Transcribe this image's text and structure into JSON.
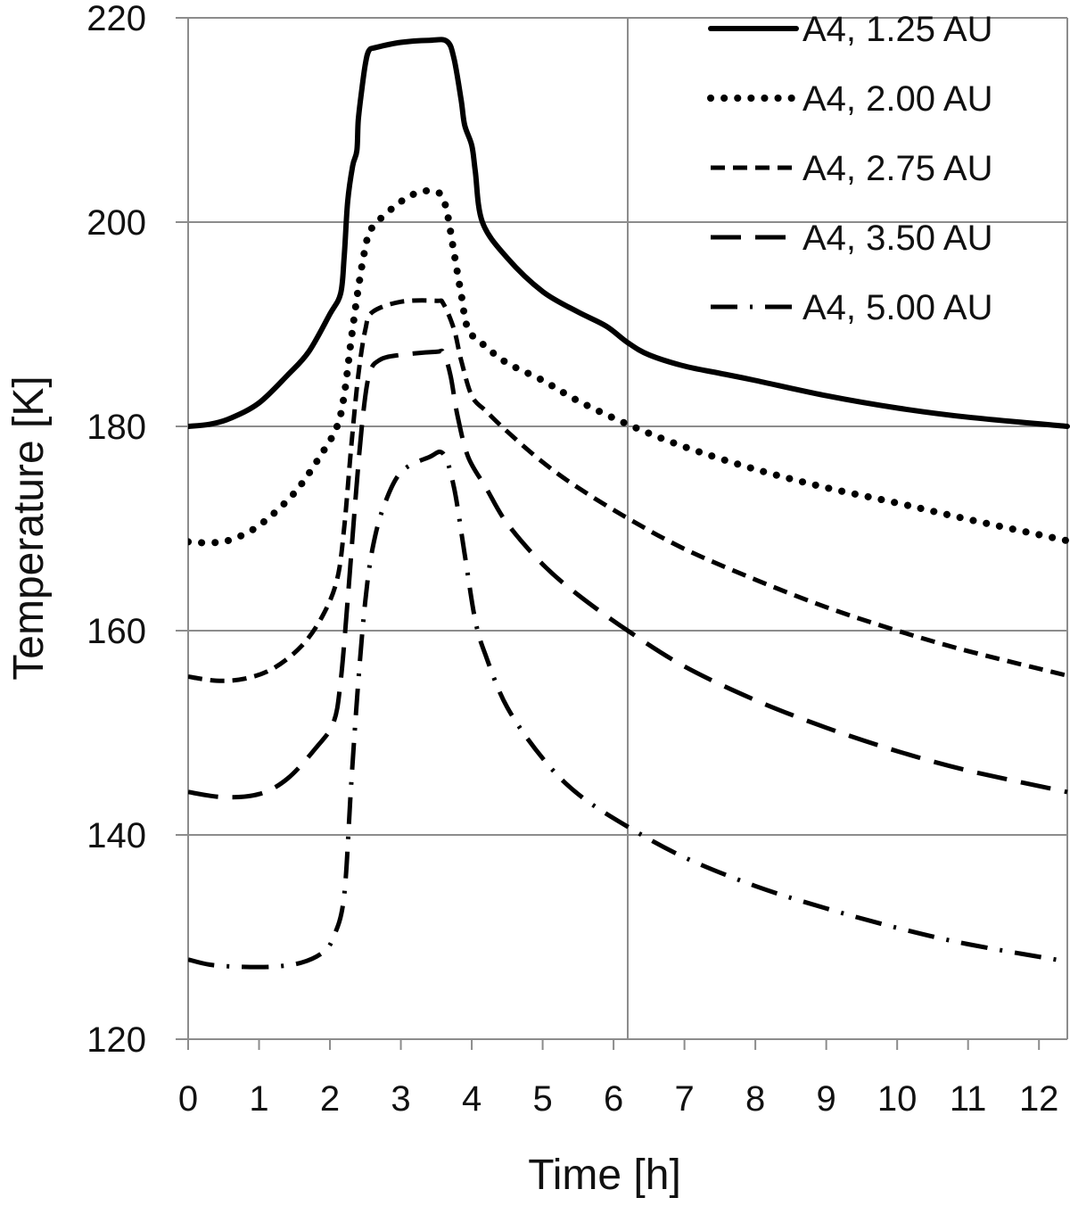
{
  "chart_data": {
    "type": "line",
    "title": "",
    "xlabel": "Time [h]",
    "ylabel": "Temperature [K]",
    "xlim": [
      0,
      12.4
    ],
    "ylim": [
      120,
      220
    ],
    "x_ticks": [
      0,
      1,
      2,
      3,
      4,
      5,
      6,
      7,
      8,
      9,
      10,
      11,
      12
    ],
    "y_ticks": [
      120,
      140,
      160,
      180,
      200,
      220
    ],
    "grid": "major gridlines at y = 140, 160, 180, 200, 220 and x ≈ 6.2",
    "legend_position": "top-right",
    "line_color": "#000000",
    "series": [
      {
        "name": "A4, 1.25 AU",
        "dash": "solid",
        "points": [
          [
            0,
            180
          ],
          [
            0.3,
            180.2
          ],
          [
            0.6,
            180.8
          ],
          [
            1.0,
            182.3
          ],
          [
            1.4,
            185
          ],
          [
            1.7,
            187.3
          ],
          [
            2.0,
            191
          ],
          [
            2.15,
            193
          ],
          [
            2.2,
            196.5
          ],
          [
            2.25,
            202
          ],
          [
            2.32,
            205.5
          ],
          [
            2.38,
            207
          ],
          [
            2.4,
            210
          ],
          [
            2.45,
            213
          ],
          [
            2.5,
            215.5
          ],
          [
            2.55,
            216.8
          ],
          [
            2.65,
            217.1
          ],
          [
            3.0,
            217.6
          ],
          [
            3.4,
            217.8
          ],
          [
            3.65,
            217.7
          ],
          [
            3.75,
            216
          ],
          [
            3.85,
            212
          ],
          [
            3.9,
            209.5
          ],
          [
            4.0,
            207.5
          ],
          [
            4.05,
            205
          ],
          [
            4.15,
            200
          ],
          [
            4.5,
            196.5
          ],
          [
            5.0,
            193.2
          ],
          [
            5.5,
            191.2
          ],
          [
            5.9,
            189.8
          ],
          [
            6.2,
            188.2
          ],
          [
            6.5,
            187
          ],
          [
            7.0,
            185.9
          ],
          [
            7.5,
            185.2
          ],
          [
            8.0,
            184.5
          ],
          [
            9.0,
            183
          ],
          [
            10.0,
            181.8
          ],
          [
            11.0,
            180.9
          ],
          [
            12.4,
            180
          ]
        ]
      },
      {
        "name": "A4, 2.00 AU",
        "dash": "dotted",
        "points": [
          [
            0,
            168.7
          ],
          [
            0.3,
            168.6
          ],
          [
            0.6,
            168.9
          ],
          [
            1.0,
            170.3
          ],
          [
            1.5,
            173.5
          ],
          [
            1.9,
            177.5
          ],
          [
            2.1,
            180
          ],
          [
            2.2,
            183
          ],
          [
            2.3,
            188.5
          ],
          [
            2.4,
            193.5
          ],
          [
            2.5,
            197.5
          ],
          [
            2.6,
            199.5
          ],
          [
            3.0,
            202
          ],
          [
            3.3,
            203
          ],
          [
            3.55,
            202.8
          ],
          [
            3.65,
            201
          ],
          [
            3.75,
            197
          ],
          [
            3.85,
            193
          ],
          [
            3.95,
            189.5
          ],
          [
            4.2,
            187.8
          ],
          [
            4.5,
            186.2
          ],
          [
            5.0,
            184.5
          ],
          [
            5.5,
            182.5
          ],
          [
            6.2,
            180.2
          ],
          [
            7.0,
            178
          ],
          [
            8.0,
            175.8
          ],
          [
            9.0,
            174
          ],
          [
            10.0,
            172.5
          ],
          [
            11.0,
            170.9
          ],
          [
            12.4,
            168.8
          ]
        ]
      },
      {
        "name": "A4, 2.75 AU",
        "dash": "short-dash",
        "points": [
          [
            0,
            155.5
          ],
          [
            0.4,
            155.1
          ],
          [
            0.8,
            155.3
          ],
          [
            1.2,
            156.3
          ],
          [
            1.6,
            158.5
          ],
          [
            1.9,
            161.5
          ],
          [
            2.1,
            165
          ],
          [
            2.2,
            170
          ],
          [
            2.3,
            178
          ],
          [
            2.4,
            185
          ],
          [
            2.5,
            189.5
          ],
          [
            2.6,
            191.2
          ],
          [
            3.0,
            192.2
          ],
          [
            3.5,
            192.3
          ],
          [
            3.6,
            192
          ],
          [
            3.75,
            189.5
          ],
          [
            3.85,
            186.5
          ],
          [
            4.0,
            183
          ],
          [
            4.2,
            181.5
          ],
          [
            4.5,
            179.5
          ],
          [
            5.0,
            176.5
          ],
          [
            5.5,
            174
          ],
          [
            6.2,
            171
          ],
          [
            7.0,
            168
          ],
          [
            8.0,
            165
          ],
          [
            9.0,
            162.3
          ],
          [
            10.0,
            160
          ],
          [
            11.0,
            158
          ],
          [
            12.4,
            155.6
          ]
        ]
      },
      {
        "name": "A4, 3.50 AU",
        "dash": "long-dash",
        "points": [
          [
            0,
            144.2
          ],
          [
            0.5,
            143.7
          ],
          [
            1.0,
            144
          ],
          [
            1.4,
            145.5
          ],
          [
            1.8,
            148.5
          ],
          [
            2.05,
            151
          ],
          [
            2.15,
            155
          ],
          [
            2.25,
            163
          ],
          [
            2.35,
            172
          ],
          [
            2.45,
            180
          ],
          [
            2.55,
            185
          ],
          [
            2.7,
            186.5
          ],
          [
            3.0,
            187
          ],
          [
            3.5,
            187.3
          ],
          [
            3.6,
            187.2
          ],
          [
            3.7,
            185
          ],
          [
            3.8,
            181
          ],
          [
            3.95,
            177
          ],
          [
            4.2,
            174
          ],
          [
            4.5,
            170.5
          ],
          [
            5.0,
            166.5
          ],
          [
            5.5,
            163.5
          ],
          [
            6.2,
            160
          ],
          [
            7.0,
            156.5
          ],
          [
            8.0,
            153.2
          ],
          [
            9.0,
            150.5
          ],
          [
            10.0,
            148.2
          ],
          [
            11.0,
            146.3
          ],
          [
            12.4,
            144.2
          ]
        ]
      },
      {
        "name": "A4, 5.00 AU",
        "dash": "dash-dot",
        "points": [
          [
            0,
            127.8
          ],
          [
            0.3,
            127.3
          ],
          [
            0.7,
            127.1
          ],
          [
            1.2,
            127.1
          ],
          [
            1.6,
            127.5
          ],
          [
            1.9,
            128.5
          ],
          [
            2.05,
            130
          ],
          [
            2.2,
            134
          ],
          [
            2.3,
            145
          ],
          [
            2.4,
            155
          ],
          [
            2.5,
            163
          ],
          [
            2.6,
            168
          ],
          [
            2.75,
            172
          ],
          [
            3.0,
            175.5
          ],
          [
            3.4,
            177
          ],
          [
            3.6,
            177.3
          ],
          [
            3.75,
            174
          ],
          [
            3.9,
            167.5
          ],
          [
            4.05,
            161
          ],
          [
            4.2,
            157.5
          ],
          [
            4.5,
            152.5
          ],
          [
            5.0,
            147.5
          ],
          [
            5.5,
            144
          ],
          [
            6.2,
            140.8
          ],
          [
            7.0,
            137.8
          ],
          [
            8.0,
            135
          ],
          [
            9.0,
            132.8
          ],
          [
            10.0,
            130.9
          ],
          [
            11.0,
            129.3
          ],
          [
            12.4,
            127.6
          ]
        ]
      }
    ]
  }
}
